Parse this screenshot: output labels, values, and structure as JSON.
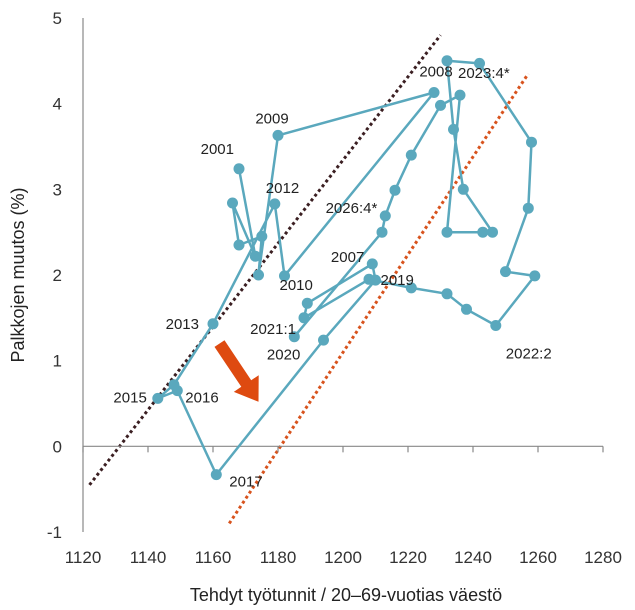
{
  "chart_data": {
    "type": "scatter",
    "xlabel": "Tehdyt työtunnit / 20–69-vuotias väestö",
    "ylabel": "Palkkojen muutos (%)",
    "xlim": [
      1120,
      1280
    ],
    "ylim": [
      -1,
      5
    ],
    "x_ticks": [
      "1120",
      "1140",
      "1160",
      "1180",
      "1200",
      "1220",
      "1240",
      "1260",
      "1280"
    ],
    "y_ticks": [
      "-1",
      "0",
      "1",
      "2",
      "3",
      "4",
      "5"
    ],
    "grid": false,
    "colors": {
      "series": "#5aa8bd",
      "trend_upper": "#3b1f22",
      "trend_lower": "#d8531d",
      "arrow": "#de4a10",
      "axis": "#888888"
    },
    "series": [
      {
        "points": [
          {
            "x": 1168,
            "y": 3.24,
            "label": "2001"
          },
          {
            "x": 1173,
            "y": 2.22
          },
          {
            "x": 1166,
            "y": 2.84
          },
          {
            "x": 1168,
            "y": 2.35
          },
          {
            "x": 1175,
            "y": 2.45
          },
          {
            "x": 1174,
            "y": 2.0
          },
          {
            "x": 1180,
            "y": 3.63,
            "label": "2009"
          },
          {
            "x": 1228,
            "y": 4.13,
            "label": "2008"
          },
          {
            "x": 1182,
            "y": 1.99,
            "label": "2010"
          },
          {
            "x": 1179,
            "y": 2.83,
            "label": "2012"
          },
          {
            "x": 1160,
            "y": 1.43,
            "label": "2013"
          },
          {
            "x": 1148,
            "y": 0.72
          },
          {
            "x": 1143,
            "y": 0.56,
            "label": "2015"
          },
          {
            "x": 1149,
            "y": 0.65,
            "label": "2016"
          },
          {
            "x": 1161,
            "y": -0.33,
            "label": "2017"
          },
          {
            "x": 1194,
            "y": 1.24
          },
          {
            "x": 1210,
            "y": 1.94,
            "label": "2019"
          },
          {
            "x": 1209,
            "y": 2.13,
            "label": "2007"
          },
          {
            "x": 1189,
            "y": 1.67
          },
          {
            "x": 1188,
            "y": 1.5,
            "label": "2021:1"
          },
          {
            "x": 1208,
            "y": 1.95
          },
          {
            "x": 1221,
            "y": 1.85
          },
          {
            "x": 1232,
            "y": 1.78
          },
          {
            "x": 1238,
            "y": 1.6
          },
          {
            "x": 1247,
            "y": 1.41,
            "label": "2022:2"
          },
          {
            "x": 1259,
            "y": 1.99
          },
          {
            "x": 1250,
            "y": 2.04
          },
          {
            "x": 1257,
            "y": 2.78
          },
          {
            "x": 1258,
            "y": 3.55
          },
          {
            "x": 1242,
            "y": 4.47
          },
          {
            "x": 1232,
            "y": 4.5,
            "label": "2023:4*"
          },
          {
            "x": 1234,
            "y": 3.7
          },
          {
            "x": 1237,
            "y": 3.0
          },
          {
            "x": 1246,
            "y": 2.5
          },
          {
            "x": 1243,
            "y": 2.5
          },
          {
            "x": 1232,
            "y": 2.5
          },
          {
            "x": 1236,
            "y": 4.1
          },
          {
            "x": 1230,
            "y": 3.98
          },
          {
            "x": 1221,
            "y": 3.4
          },
          {
            "x": 1216,
            "y": 2.99
          },
          {
            "x": 1213,
            "y": 2.69,
            "label": "2026:4*"
          },
          {
            "x": 1212,
            "y": 2.5
          },
          {
            "x": 1185,
            "y": 1.28,
            "label": "2020"
          }
        ]
      }
    ],
    "trendlines": [
      {
        "name": "upper",
        "from": [
          1122,
          -0.45
        ],
        "to": [
          1230,
          4.8
        ]
      },
      {
        "name": "lower",
        "from": [
          1165,
          -0.9
        ],
        "to": [
          1257,
          4.35
        ]
      }
    ],
    "annotations": [
      {
        "type": "arrow",
        "from": [
          1162,
          1.2
        ],
        "to": [
          1174,
          0.52
        ]
      }
    ]
  }
}
